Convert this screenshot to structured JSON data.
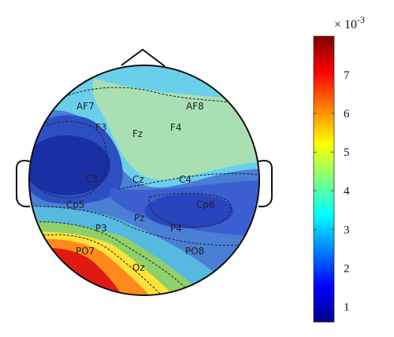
{
  "chart_data": {
    "type": "heatmap",
    "title": "",
    "colorbar": {
      "scale_label": "× 10",
      "scale_exponent": "-3",
      "range": [
        0.6,
        8.0
      ],
      "ticks": [
        "1",
        "2",
        "3",
        "4",
        "5",
        "6",
        "7"
      ],
      "tick_values": [
        1,
        2,
        3,
        4,
        5,
        6,
        7
      ],
      "colormap": [
        "#00008f",
        "#0000ff",
        "#00ffff",
        "#ffff00",
        "#ff0000",
        "#800000"
      ]
    },
    "electrodes": [
      {
        "label": "AF7",
        "value": 2.6
      },
      {
        "label": "AF8",
        "value": 3.6
      },
      {
        "label": "F3",
        "value": 1.4
      },
      {
        "label": "Fz",
        "value": 3.4
      },
      {
        "label": "F4",
        "value": 4.2
      },
      {
        "label": "C3",
        "value": 1.0
      },
      {
        "label": "Cz",
        "value": 2.8
      },
      {
        "label": "C4",
        "value": 3.2
      },
      {
        "label": "Cp5",
        "value": 2.2
      },
      {
        "label": "Pz",
        "value": 2.8
      },
      {
        "label": "Cp6",
        "value": 1.6
      },
      {
        "label": "P3",
        "value": 6.5
      },
      {
        "label": "P4",
        "value": 2.0
      },
      {
        "label": "PO7",
        "value": 7.3
      },
      {
        "label": "PO8",
        "value": 2.0
      },
      {
        "label": "Oz",
        "value": 5.0
      }
    ]
  }
}
